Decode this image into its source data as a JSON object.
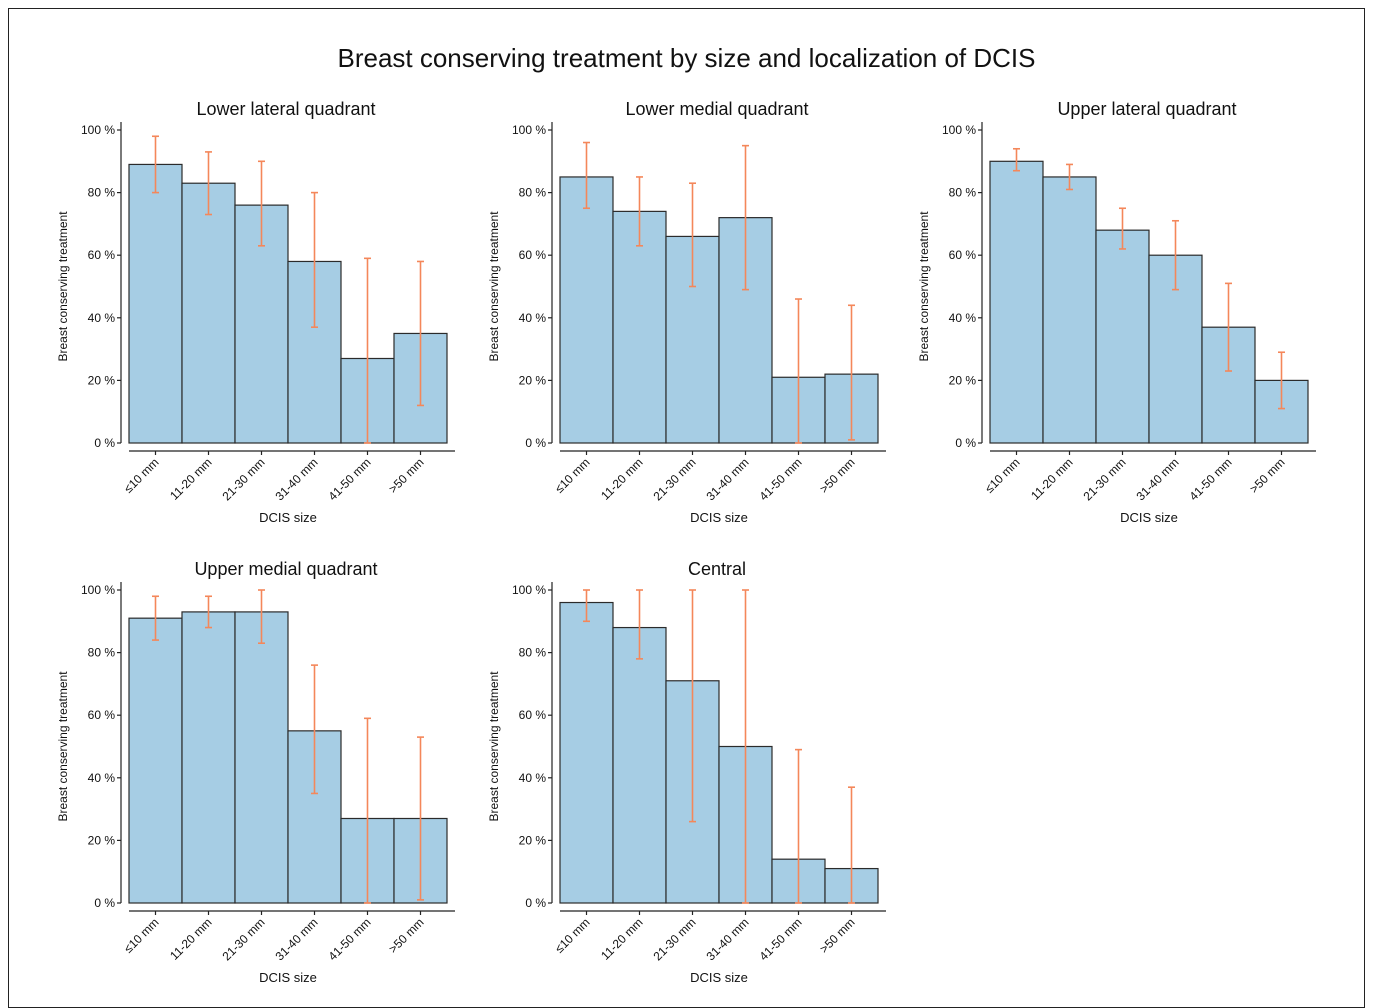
{
  "figure": {
    "title": "Breast conserving treatment by size and localization of DCIS"
  },
  "colors": {
    "bar_fill": "#a6cde4",
    "bar_stroke": "#2b2b2b",
    "error_bar": "#f4875a",
    "axis": "#222222",
    "text": "#111111"
  },
  "chart_data": [
    {
      "type": "bar",
      "title": "Lower lateral quadrant",
      "xlabel": "DCIS size",
      "ylabel": "Breast conserving treatment",
      "categories": [
        "≤10 mm",
        "11-20 mm",
        "21-30 mm",
        "31-40 mm",
        "41-50 mm",
        ">50 mm"
      ],
      "yticks": [
        "0 %",
        "20 %",
        "40 %",
        "60 %",
        "80 %",
        "100 %"
      ],
      "ylim": [
        0,
        100
      ],
      "values": [
        89,
        83,
        76,
        58,
        27,
        35
      ],
      "ci_low": [
        80,
        73,
        63,
        37,
        0,
        12
      ],
      "ci_high": [
        98,
        93,
        90,
        80,
        59,
        58
      ]
    },
    {
      "type": "bar",
      "title": "Lower medial quadrant",
      "xlabel": "DCIS size",
      "ylabel": "Breast conserving treatment",
      "categories": [
        "≤10 mm",
        "11-20 mm",
        "21-30 mm",
        "31-40 mm",
        "41-50 mm",
        ">50 mm"
      ],
      "yticks": [
        "0 %",
        "20 %",
        "40 %",
        "60 %",
        "80 %",
        "100 %"
      ],
      "ylim": [
        0,
        100
      ],
      "values": [
        85,
        74,
        66,
        72,
        21,
        22
      ],
      "ci_low": [
        75,
        63,
        50,
        49,
        0,
        1
      ],
      "ci_high": [
        96,
        85,
        83,
        95,
        46,
        44
      ]
    },
    {
      "type": "bar",
      "title": "Upper lateral quadrant",
      "xlabel": "DCIS size",
      "ylabel": "Breast conserving treatment",
      "categories": [
        "≤10 mm",
        "11-20 mm",
        "21-30 mm",
        "31-40 mm",
        "41-50 mm",
        ">50 mm"
      ],
      "yticks": [
        "0 %",
        "20 %",
        "40 %",
        "60 %",
        "80 %",
        "100 %"
      ],
      "ylim": [
        0,
        100
      ],
      "values": [
        90,
        85,
        68,
        60,
        37,
        20
      ],
      "ci_low": [
        87,
        81,
        62,
        49,
        23,
        11
      ],
      "ci_high": [
        94,
        89,
        75,
        71,
        51,
        29
      ]
    },
    {
      "type": "bar",
      "title": "Upper medial quadrant",
      "xlabel": "DCIS size",
      "ylabel": "Breast conserving treatment",
      "categories": [
        "≤10 mm",
        "11-20 mm",
        "21-30 mm",
        "31-40 mm",
        "41-50 mm",
        ">50 mm"
      ],
      "yticks": [
        "0 %",
        "20 %",
        "40 %",
        "60 %",
        "80 %",
        "100 %"
      ],
      "ylim": [
        0,
        100
      ],
      "values": [
        91,
        93,
        93,
        55,
        27,
        27
      ],
      "ci_low": [
        84,
        88,
        83,
        35,
        0,
        1
      ],
      "ci_high": [
        98,
        98,
        100,
        76,
        59,
        53
      ]
    },
    {
      "type": "bar",
      "title": "Central",
      "xlabel": "DCIS size",
      "ylabel": "Breast conserving treatment",
      "categories": [
        "≤10 mm",
        "11-20 mm",
        "21-30 mm",
        "31-40 mm",
        "41-50 mm",
        ">50 mm"
      ],
      "yticks": [
        "0 %",
        "20 %",
        "40 %",
        "60 %",
        "80 %",
        "100 %"
      ],
      "ylim": [
        0,
        100
      ],
      "values": [
        96,
        88,
        71,
        50,
        14,
        11
      ],
      "ci_low": [
        90,
        78,
        26,
        0,
        0,
        0
      ],
      "ci_high": [
        100,
        100,
        100,
        100,
        49,
        37
      ]
    }
  ]
}
